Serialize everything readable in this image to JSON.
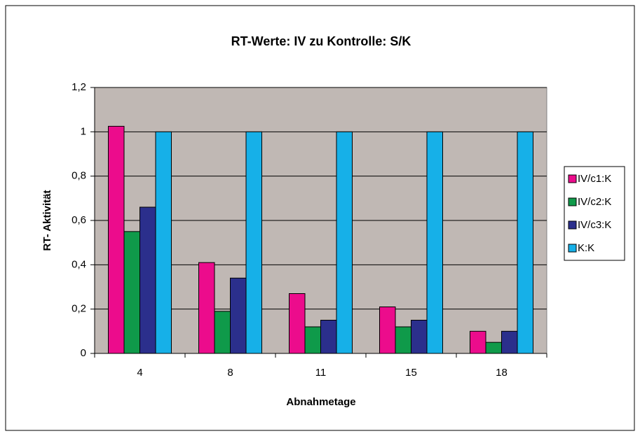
{
  "chart_data": {
    "type": "bar",
    "title": "RT-Werte: IV zu Kontrolle: S/K",
    "x_label": "Abnahmetage",
    "y_label": "RT- Aktivität",
    "categories": [
      "4",
      "8",
      "11",
      "15",
      "18"
    ],
    "series": [
      {
        "name": "IV/c1:K",
        "color": "#ec0c8c",
        "values": [
          1.025,
          0.41,
          0.27,
          0.21,
          0.1
        ]
      },
      {
        "name": "IV/c2:K",
        "color": "#0f9a4a",
        "values": [
          0.55,
          0.19,
          0.12,
          0.12,
          0.05
        ]
      },
      {
        "name": "IV/c3:K",
        "color": "#2b2f8c",
        "values": [
          0.66,
          0.34,
          0.15,
          0.15,
          0.1
        ]
      },
      {
        "name": "K:K",
        "color": "#16b0e8",
        "values": [
          1,
          1,
          1,
          1,
          1
        ]
      }
    ],
    "ylim": [
      0,
      1.2
    ],
    "yticks": [
      0,
      {
        "value": 0.2,
        "label": "0,2"
      },
      {
        "value": 0.4,
        "label": "0,4"
      },
      {
        "value": 0.6,
        "label": "0,6"
      },
      {
        "value": 0.8,
        "label": "0,8"
      },
      1,
      {
        "value": 1.2,
        "label": "1,2"
      }
    ],
    "grid": true,
    "legend": "right",
    "plot_background": "#c0b8b4"
  }
}
